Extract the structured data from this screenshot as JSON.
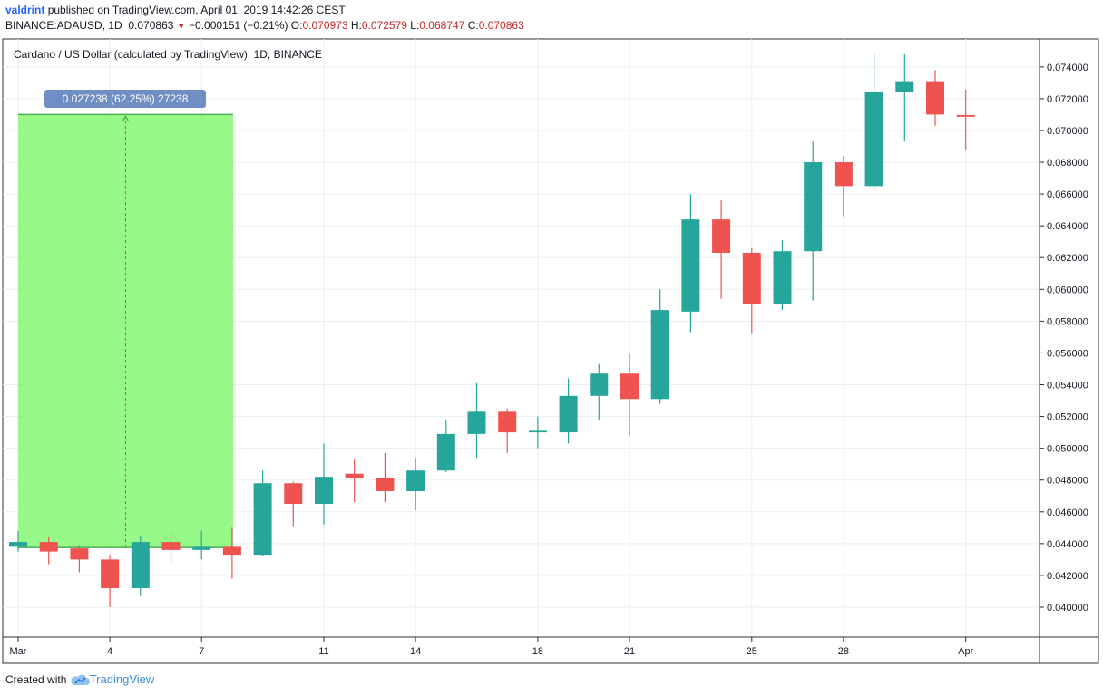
{
  "header": {
    "author": "valdrint",
    "published": "published on TradingView.com, April 01, 2019 14:42:26 CEST",
    "symbol": "BINANCE:ADAUSD, 1D",
    "last": "0.070863",
    "change_arrow": "▼",
    "change": "−0.000151 (−0.21%)",
    "o_label": "O:",
    "o_value": "0.070973",
    "h_label": "H:",
    "h_value": "0.072579",
    "l_label": "L:",
    "l_value": "0.068747",
    "c_label": "C:",
    "c_value": "0.070863"
  },
  "footer": {
    "created_with": "Created with",
    "brand": "TradingView"
  },
  "colors": {
    "up": "#26a69a",
    "down": "#ef5350",
    "grid": "#e9eef2",
    "range_fill": "#7cf86a",
    "range_label_bg": "#6f8fc4"
  },
  "chart_data": {
    "type": "candlestick",
    "title": "Cardano / US Dollar (calculated by TradingView), 1D, BINANCE",
    "ylim": [
      0.0386,
      0.0755
    ],
    "y_ticks": [
      "0.040000",
      "0.042000",
      "0.044000",
      "0.046000",
      "0.048000",
      "0.050000",
      "0.052000",
      "0.054000",
      "0.056000",
      "0.058000",
      "0.060000",
      "0.062000",
      "0.064000",
      "0.066000",
      "0.068000",
      "0.070000",
      "0.072000",
      "0.074000"
    ],
    "x_ticks": [
      {
        "label": "Mar",
        "day": 1
      },
      {
        "label": "4",
        "day": 4
      },
      {
        "label": "7",
        "day": 7
      },
      {
        "label": "11",
        "day": 11
      },
      {
        "label": "14",
        "day": 14
      },
      {
        "label": "18",
        "day": 18
      },
      {
        "label": "21",
        "day": 21
      },
      {
        "label": "25",
        "day": 25
      },
      {
        "label": "28",
        "day": 28
      },
      {
        "label": "Apr",
        "day": 32
      }
    ],
    "candles": [
      {
        "date": "2019-03-01",
        "o": 0.0438,
        "h": 0.0448,
        "l": 0.0435,
        "c": 0.0441
      },
      {
        "date": "2019-03-02",
        "o": 0.0441,
        "h": 0.0444,
        "l": 0.0427,
        "c": 0.0435
      },
      {
        "date": "2019-03-03",
        "o": 0.0437,
        "h": 0.0439,
        "l": 0.0422,
        "c": 0.043
      },
      {
        "date": "2019-03-04",
        "o": 0.043,
        "h": 0.0433,
        "l": 0.04,
        "c": 0.0412
      },
      {
        "date": "2019-03-05",
        "o": 0.0412,
        "h": 0.0445,
        "l": 0.0407,
        "c": 0.0441
      },
      {
        "date": "2019-03-06",
        "o": 0.0441,
        "h": 0.0447,
        "l": 0.0428,
        "c": 0.0436
      },
      {
        "date": "2019-03-07",
        "o": 0.0436,
        "h": 0.0448,
        "l": 0.043,
        "c": 0.0438
      },
      {
        "date": "2019-03-08",
        "o": 0.0438,
        "h": 0.045,
        "l": 0.0418,
        "c": 0.0433
      },
      {
        "date": "2019-03-09",
        "o": 0.0433,
        "h": 0.0486,
        "l": 0.0432,
        "c": 0.0478
      },
      {
        "date": "2019-03-10",
        "o": 0.0478,
        "h": 0.0479,
        "l": 0.0451,
        "c": 0.0465
      },
      {
        "date": "2019-03-11",
        "o": 0.0465,
        "h": 0.0503,
        "l": 0.0452,
        "c": 0.0482
      },
      {
        "date": "2019-03-12",
        "o": 0.0484,
        "h": 0.0493,
        "l": 0.0466,
        "c": 0.0481
      },
      {
        "date": "2019-03-13",
        "o": 0.0481,
        "h": 0.0497,
        "l": 0.0466,
        "c": 0.0473
      },
      {
        "date": "2019-03-14",
        "o": 0.0473,
        "h": 0.0494,
        "l": 0.0461,
        "c": 0.0486
      },
      {
        "date": "2019-03-15",
        "o": 0.0486,
        "h": 0.0518,
        "l": 0.0485,
        "c": 0.0509
      },
      {
        "date": "2019-03-16",
        "o": 0.0509,
        "h": 0.0541,
        "l": 0.0494,
        "c": 0.0523
      },
      {
        "date": "2019-03-17",
        "o": 0.0523,
        "h": 0.0525,
        "l": 0.0497,
        "c": 0.051
      },
      {
        "date": "2019-03-18",
        "o": 0.051,
        "h": 0.052,
        "l": 0.05,
        "c": 0.0511
      },
      {
        "date": "2019-03-19",
        "o": 0.051,
        "h": 0.0544,
        "l": 0.0503,
        "c": 0.0533
      },
      {
        "date": "2019-03-20",
        "o": 0.0533,
        "h": 0.0553,
        "l": 0.0518,
        "c": 0.0547
      },
      {
        "date": "2019-03-21",
        "o": 0.0547,
        "h": 0.056,
        "l": 0.0508,
        "c": 0.0531
      },
      {
        "date": "2019-03-22",
        "o": 0.0531,
        "h": 0.06,
        "l": 0.0528,
        "c": 0.0587
      },
      {
        "date": "2019-03-23",
        "o": 0.0586,
        "h": 0.066,
        "l": 0.0573,
        "c": 0.0644
      },
      {
        "date": "2019-03-24",
        "o": 0.0644,
        "h": 0.0656,
        "l": 0.0594,
        "c": 0.0623
      },
      {
        "date": "2019-03-25",
        "o": 0.0623,
        "h": 0.0626,
        "l": 0.0572,
        "c": 0.0591
      },
      {
        "date": "2019-03-26",
        "o": 0.0591,
        "h": 0.0631,
        "l": 0.0587,
        "c": 0.0624
      },
      {
        "date": "2019-03-27",
        "o": 0.0624,
        "h": 0.0693,
        "l": 0.0593,
        "c": 0.068
      },
      {
        "date": "2019-03-28",
        "o": 0.068,
        "h": 0.0684,
        "l": 0.0646,
        "c": 0.0665
      },
      {
        "date": "2019-03-29",
        "o": 0.0665,
        "h": 0.0748,
        "l": 0.0662,
        "c": 0.0724
      },
      {
        "date": "2019-03-30",
        "o": 0.0724,
        "h": 0.0748,
        "l": 0.0693,
        "c": 0.0731
      },
      {
        "date": "2019-03-31",
        "o": 0.0731,
        "h": 0.0738,
        "l": 0.0703,
        "c": 0.071
      },
      {
        "date": "2019-04-01",
        "o": 0.070973,
        "h": 0.072579,
        "l": 0.068747,
        "c": 0.070863
      }
    ],
    "price_range_tool": {
      "label": "0.027238 (62.25%) 27238",
      "from_day": 1,
      "to_day": 8,
      "low": 0.04376,
      "high": 0.071
    }
  }
}
